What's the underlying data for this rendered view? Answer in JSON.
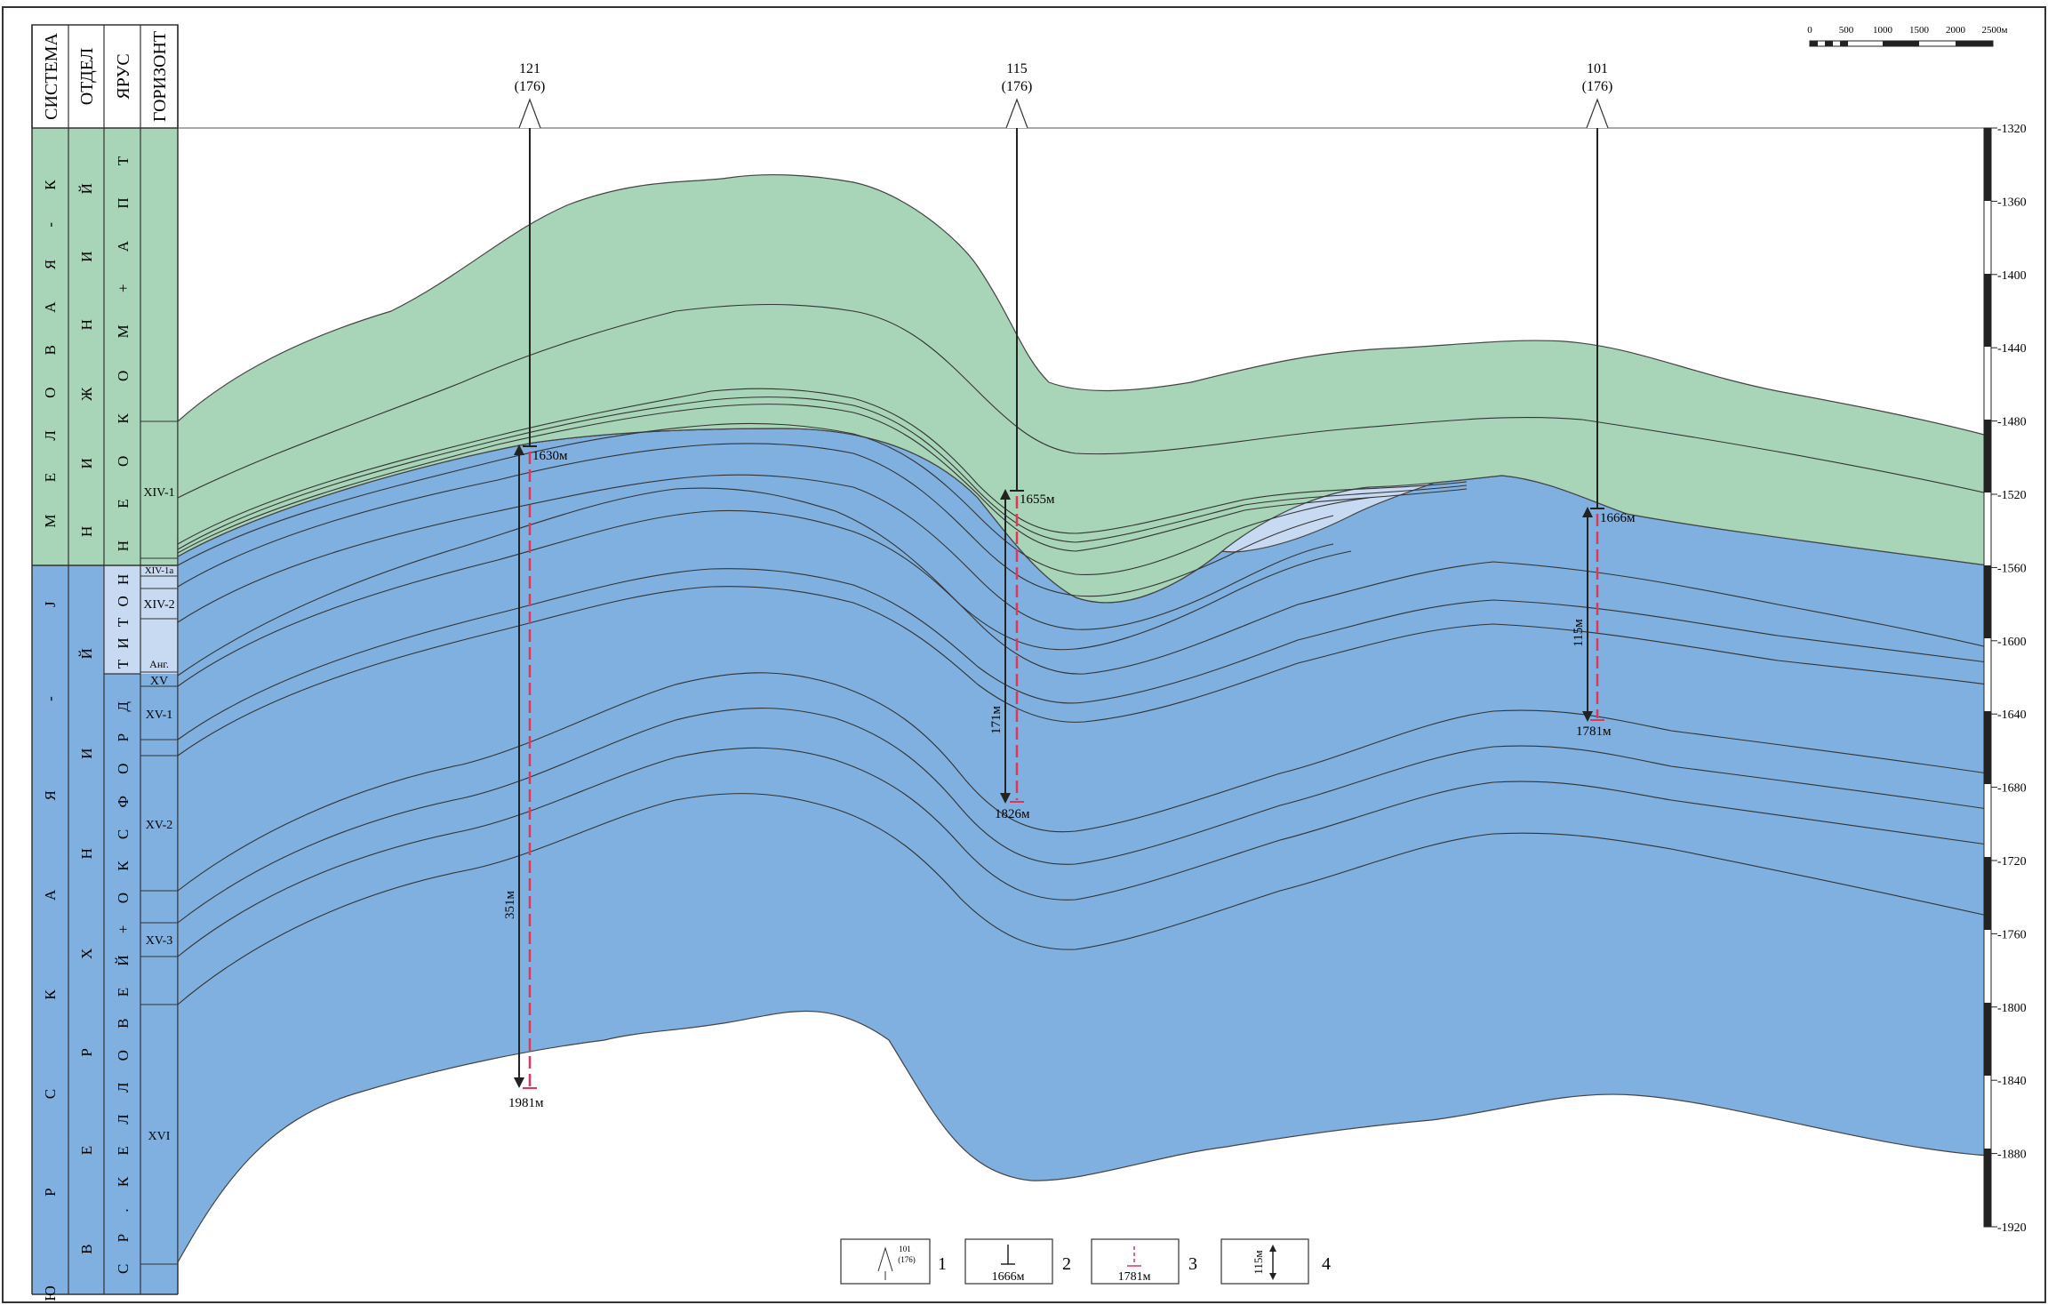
{
  "strat_header": {
    "system": "СИСТЕМА",
    "division": "ОТДЕЛ",
    "stage": "ЯРУС",
    "horizon": "ГОРИЗОНТ"
  },
  "strat_columns": {
    "system_cretaceous": "М Е Л О В А Я - К",
    "system_jurassic": "Ю Р С К А Я - J",
    "division_lower": "Н И Ж Н И Й",
    "division_upper": "В Е Р Х Н И Й",
    "stage_neocomian": "Н Е О К О М + А П Т",
    "stage_tithonian": "Т И Т О Н",
    "stage_callovian": "С Р . К Е Л Л О В Е Й + О К С Ф О Р Д"
  },
  "horizons": [
    "XIV-1",
    "XIV-1а",
    "XIV-2",
    "Анг.",
    "XV",
    "XV-1",
    "XV-2",
    "XV-3",
    "XVI"
  ],
  "wells": [
    {
      "id": "121",
      "alt": "(176)",
      "top_label": "1630м",
      "bottom_label": "1981м",
      "thickness_label": "351м"
    },
    {
      "id": "115",
      "alt": "(176)",
      "top_label": "1655м",
      "bottom_label": "1826м",
      "thickness_label": "171м"
    },
    {
      "id": "101",
      "alt": "(176)",
      "top_label": "1666м",
      "bottom_label": "1781м",
      "thickness_label": "115м"
    }
  ],
  "depth_scale": {
    "ticks": [
      "-1320",
      "-1360",
      "-1400",
      "-1440",
      "-1480",
      "-1520",
      "-1560",
      "-1600",
      "-1640",
      "-1680",
      "-1720",
      "-1760",
      "-1800",
      "-1840",
      "-1880",
      "-1920"
    ]
  },
  "scale_bar": {
    "labels": [
      "0",
      "500",
      "1000",
      "1500",
      "2000",
      "2500м"
    ]
  },
  "legend": [
    {
      "num": "1",
      "sample_top": "101",
      "sample_bottom": "(176)",
      "icon": "well-symbol-icon"
    },
    {
      "num": "2",
      "sample": "1666м",
      "icon": "formation-top-icon"
    },
    {
      "num": "3",
      "sample": "1781м",
      "icon": "formation-bottom-icon"
    },
    {
      "num": "4",
      "sample": "115м",
      "icon": "thickness-arrow-icon"
    }
  ],
  "colors": {
    "cretaceous": "#a8d5b8",
    "tithonian": "#c8daf2",
    "jurassic": "#7fb0df",
    "line": "#333333",
    "well_marker": "#e0365a"
  }
}
